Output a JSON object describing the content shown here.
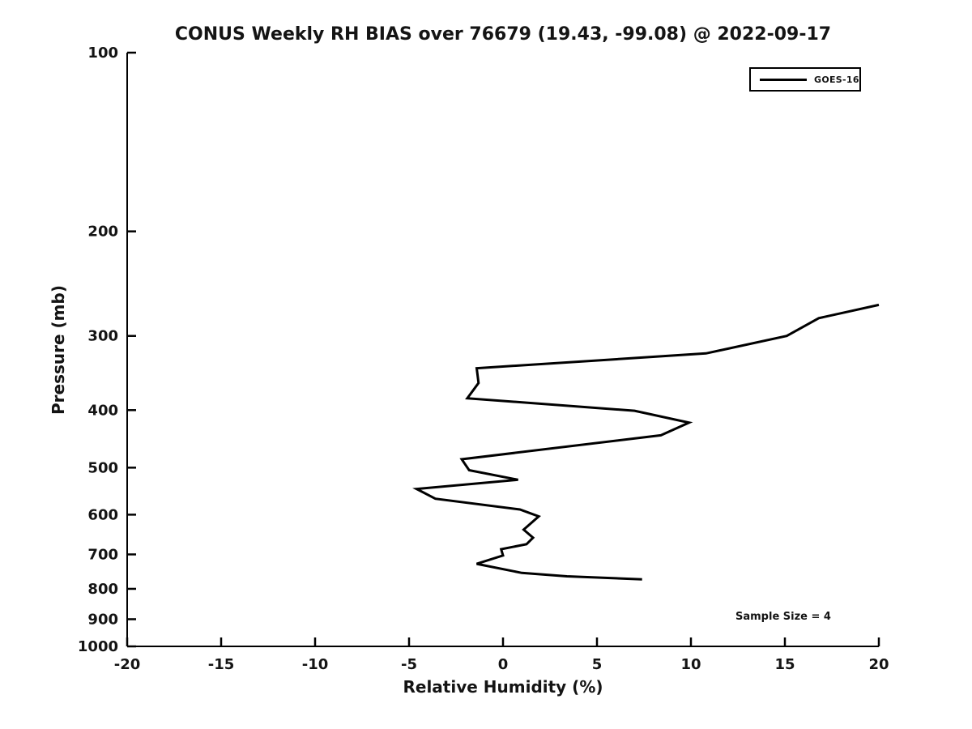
{
  "page": {
    "background": "#ffffff",
    "text_color": "#141414",
    "line_color": "#000000"
  },
  "chart_data": {
    "type": "line",
    "title": "CONUS Weekly RH BIAS over 76679 (19.43, -99.08) @ 2022-09-17",
    "xlabel": "Relative Humidity (%)",
    "ylabel": "Pressure (mb)",
    "annotation": "Sample Size = 4",
    "grid": false,
    "x_axis": {
      "scale": "linear",
      "min": -20,
      "max": 20,
      "ticks": [
        -20,
        -15,
        -10,
        -5,
        0,
        5,
        10,
        15,
        20
      ]
    },
    "y_axis": {
      "scale": "log",
      "min": 100,
      "max": 1000,
      "inverted": true,
      "ticks": [
        100,
        200,
        300,
        400,
        500,
        600,
        700,
        800,
        900,
        1000
      ]
    },
    "legend": {
      "position": "top-right",
      "entries": [
        {
          "label": "GOES-16",
          "color": "#000000"
        }
      ]
    },
    "series": [
      {
        "name": "GOES-16",
        "color": "#000000",
        "line_width": 3,
        "points_note": "x = RH bias (%), y = pressure (mb)",
        "points": [
          {
            "rh": 20.0,
            "p": 266
          },
          {
            "rh": 16.8,
            "p": 280
          },
          {
            "rh": 15.1,
            "p": 300
          },
          {
            "rh": 10.8,
            "p": 321
          },
          {
            "rh": -1.4,
            "p": 340
          },
          {
            "rh": -1.3,
            "p": 360
          },
          {
            "rh": -1.9,
            "p": 382
          },
          {
            "rh": 7.0,
            "p": 401
          },
          {
            "rh": 9.9,
            "p": 420
          },
          {
            "rh": 8.4,
            "p": 441
          },
          {
            "rh": -2.2,
            "p": 484
          },
          {
            "rh": -1.8,
            "p": 505
          },
          {
            "rh": 0.8,
            "p": 524
          },
          {
            "rh": -4.6,
            "p": 543
          },
          {
            "rh": -3.6,
            "p": 564
          },
          {
            "rh": 0.9,
            "p": 588
          },
          {
            "rh": 1.9,
            "p": 604
          },
          {
            "rh": 1.1,
            "p": 636
          },
          {
            "rh": 1.6,
            "p": 656
          },
          {
            "rh": 1.25,
            "p": 673
          },
          {
            "rh": -0.1,
            "p": 686
          },
          {
            "rh": 0.0,
            "p": 703
          },
          {
            "rh": -1.4,
            "p": 726
          },
          {
            "rh": 1.0,
            "p": 752
          },
          {
            "rh": 3.4,
            "p": 762
          },
          {
            "rh": 7.4,
            "p": 771
          }
        ]
      }
    ]
  }
}
